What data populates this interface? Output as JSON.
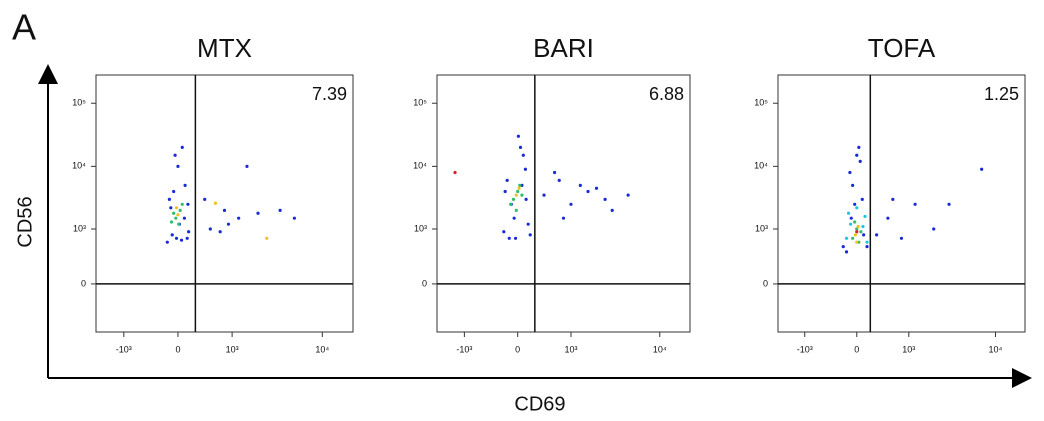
{
  "panel_label": "A",
  "x_label": "CD69",
  "y_label": "CD56",
  "chart_data": [
    {
      "type": "scatter",
      "title": "MTX",
      "quadrant_value": 7.39,
      "xscale": "biexponential",
      "yscale": "biexponential",
      "xlim": [
        -2100,
        21400
      ],
      "ylim": [
        -770,
        280000
      ],
      "xticks": [
        {
          "value": -1000,
          "label": "-10³"
        },
        0,
        {
          "value": 1000,
          "label": "10³"
        },
        {
          "value": 10000,
          "label": "10⁴"
        }
      ],
      "yticks": [
        {
          "value": 100000,
          "label": "10⁵"
        },
        {
          "value": 10000,
          "label": "10⁴"
        },
        {
          "value": 1000,
          "label": "10³"
        },
        0
      ],
      "gate": {
        "x": 250,
        "y": 0
      },
      "populations": [
        {
          "color": "#1a2bd6",
          "x": [
            -150,
            -80,
            20,
            100,
            150,
            -120,
            60,
            -40,
            130,
            -100,
            50,
            0,
            -60,
            90,
            -20,
            140,
            500,
            800,
            1200,
            2000,
            3500,
            700,
            1500,
            400,
            5000,
            900
          ],
          "y": [
            600,
            800,
            1200,
            5000,
            900,
            3000,
            20000,
            15000,
            700,
            2200,
            650,
            10000,
            4000,
            1500,
            700,
            2500,
            1000,
            2000,
            1500,
            1800,
            2000,
            900,
            10000,
            3000,
            1500,
            1200
          ]
        },
        {
          "color": "#2fbf6a",
          "x": [
            -30,
            30,
            -60,
            10,
            60,
            -90
          ],
          "y": [
            1500,
            2000,
            1800,
            1200,
            2500,
            1300
          ]
        },
        {
          "color": "#f0c020",
          "x": [
            0,
            -20,
            2500,
            600
          ],
          "y": [
            1700,
            2200,
            700,
            2600
          ]
        }
      ]
    },
    {
      "type": "scatter",
      "title": "BARI",
      "quadrant_value": 6.88,
      "xscale": "biexponential",
      "yscale": "biexponential",
      "xlim": [
        -2100,
        21400
      ],
      "ylim": [
        -770,
        280000
      ],
      "xticks": [
        {
          "value": -1000,
          "label": "-10³"
        },
        0,
        {
          "value": 1000,
          "label": "10³"
        },
        {
          "value": 10000,
          "label": "10⁴"
        }
      ],
      "yticks": [
        {
          "value": 100000,
          "label": "10⁵"
        },
        {
          "value": 10000,
          "label": "10⁴"
        },
        {
          "value": 1000,
          "label": "10³"
        },
        0
      ],
      "gate": {
        "x": 250,
        "y": 0
      },
      "populations": [
        {
          "color": "#1a2bd6",
          "x": [
            -200,
            -120,
            -50,
            40,
            120,
            180,
            -150,
            80,
            -90,
            150,
            10,
            -30,
            110,
            -180,
            60,
            400,
            700,
            1000,
            1600,
            2500,
            3000,
            600,
            1300,
            800,
            2000,
            4500
          ],
          "y": [
            900,
            700,
            1500,
            20000,
            3000,
            800,
            6000,
            15000,
            2500,
            1200,
            30000,
            700,
            9000,
            4000,
            5000,
            3500,
            6000,
            2500,
            4000,
            3000,
            2000,
            8000,
            5000,
            1500,
            4500,
            3500
          ]
        },
        {
          "color": "#2fbf6a",
          "x": [
            -60,
            0,
            60,
            -100,
            30,
            -20
          ],
          "y": [
            3000,
            4000,
            3500,
            2500,
            5000,
            2000
          ]
        },
        {
          "color": "#f0c020",
          "x": [
            -20,
            20
          ],
          "y": [
            3500,
            4500
          ]
        },
        {
          "color": "#e02020",
          "x": [
            -1300
          ],
          "y": [
            8000
          ]
        }
      ]
    },
    {
      "type": "scatter",
      "title": "TOFA",
      "quadrant_value": 1.25,
      "xscale": "biexponential",
      "yscale": "biexponential",
      "xlim": [
        -2100,
        21400
      ],
      "ylim": [
        -770,
        280000
      ],
      "xticks": [
        {
          "value": -1000,
          "label": "-10³"
        },
        0,
        {
          "value": 1000,
          "label": "10³"
        },
        {
          "value": 10000,
          "label": "10⁴"
        }
      ],
      "yticks": [
        {
          "value": 100000,
          "label": "10⁵"
        },
        {
          "value": 10000,
          "label": "10⁴"
        },
        {
          "value": 1000,
          "label": "10³"
        },
        0
      ],
      "gate": {
        "x": 200,
        "y": 0
      },
      "populations": [
        {
          "color": "#1a2bd6",
          "x": [
            -200,
            -150,
            -80,
            0,
            80,
            150,
            -100,
            50,
            -30,
            100,
            -60,
            30,
            300,
            500,
            800,
            1200,
            2000,
            3000,
            600,
            7000
          ],
          "y": [
            500,
            400,
            1500,
            15000,
            3000,
            500,
            8000,
            12000,
            2500,
            800,
            5000,
            20000,
            800,
            1500,
            700,
            2500,
            1000,
            2500,
            3000,
            9000
          ]
        },
        {
          "color": "#19c8e0",
          "x": [
            -150,
            -90,
            0,
            90,
            150,
            -120,
            120
          ],
          "y": [
            700,
            1200,
            2200,
            1100,
            600,
            1800,
            1600
          ]
        },
        {
          "color": "#2fbf6a",
          "x": [
            -60,
            0,
            60,
            -30,
            30
          ],
          "y": [
            700,
            1000,
            900,
            1300,
            600
          ]
        },
        {
          "color": "#f0c020",
          "x": [
            -20,
            20,
            0
          ],
          "y": [
            800,
            1100,
            600
          ]
        },
        {
          "color": "#e02020",
          "x": [
            0
          ],
          "y": [
            900
          ]
        }
      ]
    }
  ]
}
